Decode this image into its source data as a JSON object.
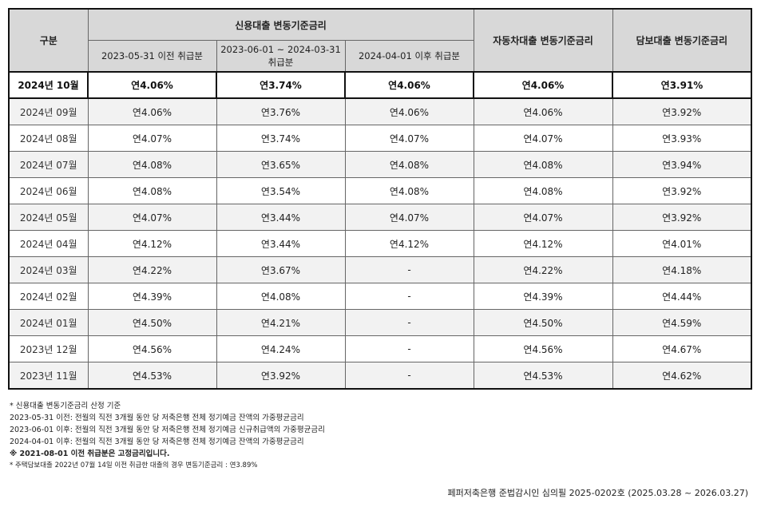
{
  "header": {
    "division": "구분",
    "credit_group": "신용대출 변동기준금리",
    "credit_sub": [
      "2023-05-31 이전 취급분",
      "2023-06-01 ~ 2024-03-31 취급분",
      "2024-04-01 이후 취급분"
    ],
    "auto": "자동차대출 변동기준금리",
    "secured": "담보대출 변동기준금리"
  },
  "rows": [
    {
      "month": "2024년 10월",
      "c1": "연4.06%",
      "c2": "연3.74%",
      "c3": "연4.06%",
      "auto": "연4.06%",
      "secured": "연3.91%"
    },
    {
      "month": "2024년 09월",
      "c1": "연4.06%",
      "c2": "연3.76%",
      "c3": "연4.06%",
      "auto": "연4.06%",
      "secured": "연3.92%"
    },
    {
      "month": "2024년 08월",
      "c1": "연4.07%",
      "c2": "연3.74%",
      "c3": "연4.07%",
      "auto": "연4.07%",
      "secured": "연3.93%"
    },
    {
      "month": "2024년 07월",
      "c1": "연4.08%",
      "c2": "연3.65%",
      "c3": "연4.08%",
      "auto": "연4.08%",
      "secured": "연3.94%"
    },
    {
      "month": "2024년 06월",
      "c1": "연4.08%",
      "c2": "연3.54%",
      "c3": "연4.08%",
      "auto": "연4.08%",
      "secured": "연3.92%"
    },
    {
      "month": "2024년 05월",
      "c1": "연4.07%",
      "c2": "연3.44%",
      "c3": "연4.07%",
      "auto": "연4.07%",
      "secured": "연3.92%"
    },
    {
      "month": "2024년 04월",
      "c1": "연4.12%",
      "c2": "연3.44%",
      "c3": "연4.12%",
      "auto": "연4.12%",
      "secured": "연4.01%"
    },
    {
      "month": "2024년 03월",
      "c1": "연4.22%",
      "c2": "연3.67%",
      "c3": "-",
      "auto": "연4.22%",
      "secured": "연4.18%"
    },
    {
      "month": "2024년 02월",
      "c1": "연4.39%",
      "c2": "연4.08%",
      "c3": "-",
      "auto": "연4.39%",
      "secured": "연4.44%"
    },
    {
      "month": "2024년 01월",
      "c1": "연4.50%",
      "c2": "연4.21%",
      "c3": "-",
      "auto": "연4.50%",
      "secured": "연4.59%"
    },
    {
      "month": "2023년 12월",
      "c1": "연4.56%",
      "c2": "연4.24%",
      "c3": "-",
      "auto": "연4.56%",
      "secured": "연4.67%"
    },
    {
      "month": "2023년 11월",
      "c1": "연4.53%",
      "c2": "연3.92%",
      "c3": "-",
      "auto": "연4.53%",
      "secured": "연4.62%"
    }
  ],
  "notes": [
    "* 신용대출 변동기준금리 산정 기준",
    "2023-05-31 이전: 전월의 직전 3개월 동안 당 저축은행 전체 정기예금 잔액의 가중평균금리",
    "2023-06-01 이후: 전월의 직전 3개월 동안 당 저축은행 전체 정기예금 신규취급액의 가중평균금리",
    "2024-04-01 이후: 전월의 직전 3개월 동안 당 저축은행 전체 정기예금 잔액의 가중평균금리",
    "※ 2021-08-01 이전 취급분은 고정금리입니다.",
    "* 주택담보대출 2022년 07월 14일 이전 취급한 대출의 경우 변동기준금리 : 연3.89%"
  ],
  "footer": "페퍼저축은행 준법감시인 심의필 2025-0202호 (2025.03.28 ~ 2026.03.27)"
}
